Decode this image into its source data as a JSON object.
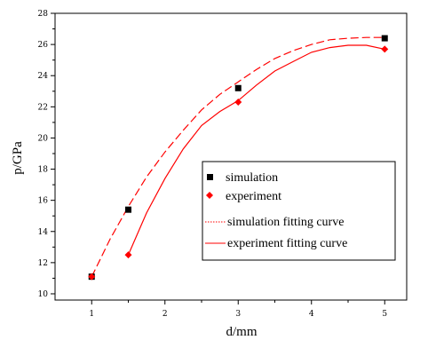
{
  "chart_data": {
    "type": "scatter",
    "xlabel": "d/mm",
    "ylabel": "p/GPa",
    "xlim": [
      0.5,
      5.3
    ],
    "ylim": [
      9.6,
      28
    ],
    "x_ticks": [
      1,
      2,
      3,
      4,
      5
    ],
    "y_ticks": [
      10,
      12,
      14,
      16,
      18,
      20,
      22,
      24,
      26,
      28
    ],
    "series": [
      {
        "name": "simulation",
        "kind": "points",
        "marker": "square",
        "color": "#000000",
        "x": [
          1,
          1.5,
          3,
          5
        ],
        "y": [
          11.1,
          15.4,
          23.2,
          26.4
        ]
      },
      {
        "name": "experiment",
        "kind": "points",
        "marker": "diamond",
        "color": "#ff0000",
        "x": [
          1,
          1.5,
          3,
          5
        ],
        "y": [
          11.1,
          12.5,
          22.3,
          25.7
        ]
      },
      {
        "name": "simulation fitting curve",
        "kind": "line",
        "style": "dashed",
        "color": "#ff0000",
        "x": [
          1,
          1.25,
          1.5,
          1.75,
          2,
          2.25,
          2.5,
          2.75,
          3,
          3.25,
          3.5,
          3.75,
          4,
          4.25,
          4.5,
          4.75,
          5
        ],
        "y": [
          11.1,
          13.5,
          15.6,
          17.5,
          19.1,
          20.5,
          21.8,
          22.8,
          23.6,
          24.4,
          25.1,
          25.6,
          26.0,
          26.3,
          26.4,
          26.45,
          26.45
        ]
      },
      {
        "name": "experiment fitting curve",
        "kind": "line",
        "style": "solid",
        "color": "#ff0000",
        "x": [
          1.5,
          1.75,
          2,
          2.25,
          2.5,
          2.75,
          3,
          3.25,
          3.5,
          3.75,
          4,
          4.25,
          4.5,
          4.75,
          5
        ],
        "y": [
          12.5,
          15.2,
          17.4,
          19.3,
          20.8,
          21.7,
          22.4,
          23.4,
          24.3,
          24.9,
          25.5,
          25.8,
          25.95,
          25.95,
          25.7
        ]
      }
    ],
    "legend_position": "center-right"
  }
}
